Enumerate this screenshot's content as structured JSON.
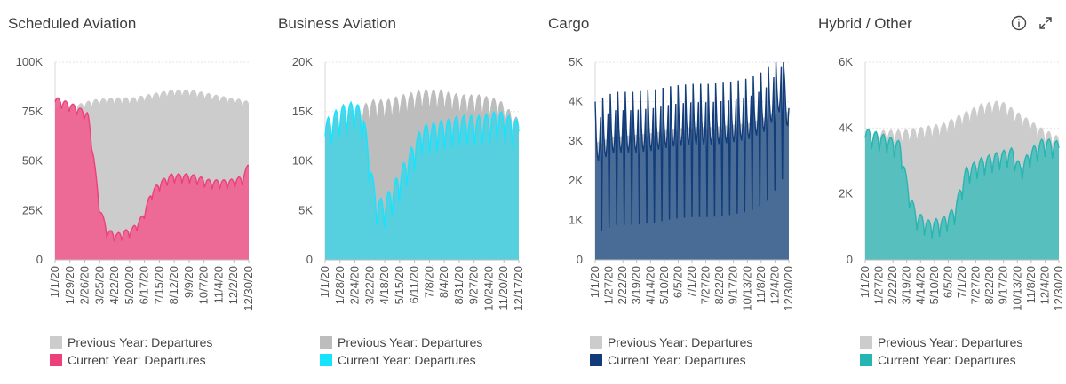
{
  "toolbar": {
    "info_icon": "info-icon",
    "expand_icon": "expand-icon",
    "menu_icon": "more-vert-icon"
  },
  "chart_data": [
    {
      "type": "area",
      "title": "Scheduled Aviation",
      "ylim": [
        0,
        100000
      ],
      "yticks": [
        "0",
        "25K",
        "50K",
        "75K",
        "100K"
      ],
      "xticks": [
        "1/1/20",
        "1/29/20",
        "2/26/20",
        "3/25/20",
        "4/22/20",
        "5/20/20",
        "6/17/20",
        "7/15/20",
        "8/12/20",
        "9/9/20",
        "10/7/20",
        "11/4/20",
        "12/2/20",
        "12/30/20"
      ],
      "colors": {
        "previous": "#cccccc",
        "current": "#f06292",
        "current_line": "#ec407a"
      },
      "series": [
        {
          "name": "Previous Year: Departures",
          "points": [
            [
              0,
              75000
            ],
            [
              0.13,
              77000
            ],
            [
              0.2,
              79000
            ],
            [
              0.3,
              80000
            ],
            [
              0.4,
              80000
            ],
            [
              0.5,
              82000
            ],
            [
              0.6,
              84000
            ],
            [
              0.7,
              84000
            ],
            [
              0.8,
              82000
            ],
            [
              0.9,
              80000
            ],
            [
              0.97,
              79000
            ],
            [
              1,
              78000
            ]
          ]
        },
        {
          "name": "Current Year: Departures",
          "points": [
            [
              0,
              80000
            ],
            [
              0.1,
              76000
            ],
            [
              0.17,
              72000
            ],
            [
              0.2,
              50000
            ],
            [
              0.23,
              25000
            ],
            [
              0.27,
              13000
            ],
            [
              0.32,
              11000
            ],
            [
              0.4,
              14000
            ],
            [
              0.45,
              20000
            ],
            [
              0.5,
              33000
            ],
            [
              0.55,
              38000
            ],
            [
              0.6,
              41000
            ],
            [
              0.7,
              41000
            ],
            [
              0.8,
              38000
            ],
            [
              0.9,
              38000
            ],
            [
              0.97,
              40000
            ],
            [
              1,
              47000
            ]
          ]
        }
      ],
      "legend": [
        "Previous Year: Departures",
        "Current Year: Departures"
      ]
    },
    {
      "type": "area",
      "title": "Business Aviation",
      "ylim": [
        0,
        20000
      ],
      "yticks": [
        "0",
        "5K",
        "10K",
        "15K",
        "20K"
      ],
      "xticks": [
        "1/1/20",
        "1/28/20",
        "2/24/20",
        "3/22/20",
        "4/18/20",
        "5/15/20",
        "6/11/20",
        "7/8/20",
        "8/4/20",
        "8/31/20",
        "9/27/20",
        "10/24/20",
        "11/20/20",
        "12/17/20"
      ],
      "colors": {
        "previous": "#bdbdbd",
        "current": "#4dd0e1",
        "current_line": "#18e3ff"
      },
      "series": [
        {
          "name": "Previous Year: Departures",
          "points": [
            [
              0,
              12500
            ],
            [
              0.08,
              13500
            ],
            [
              0.16,
              14000
            ],
            [
              0.24,
              15000
            ],
            [
              0.32,
              15000
            ],
            [
              0.4,
              15500
            ],
            [
              0.5,
              16000
            ],
            [
              0.6,
              16000
            ],
            [
              0.7,
              15500
            ],
            [
              0.8,
              15500
            ],
            [
              0.9,
              15000
            ],
            [
              1,
              13000
            ]
          ]
        },
        {
          "name": "Current Year: Departures",
          "points": [
            [
              0,
              12500
            ],
            [
              0.08,
              14000
            ],
            [
              0.16,
              14500
            ],
            [
              0.2,
              13000
            ],
            [
              0.23,
              9000
            ],
            [
              0.26,
              5000
            ],
            [
              0.3,
              4500
            ],
            [
              0.35,
              6000
            ],
            [
              0.4,
              8000
            ],
            [
              0.45,
              10000
            ],
            [
              0.5,
              12000
            ],
            [
              0.6,
              12500
            ],
            [
              0.7,
              13000
            ],
            [
              0.8,
              13000
            ],
            [
              0.9,
              13500
            ],
            [
              1,
              12500
            ]
          ]
        }
      ],
      "legend": [
        "Previous Year: Departures",
        "Current Year: Departures"
      ]
    },
    {
      "type": "area",
      "title": "Cargo",
      "ylim": [
        0,
        5000
      ],
      "yticks": [
        "0",
        "1K",
        "2K",
        "3K",
        "4K",
        "5K"
      ],
      "xticks": [
        "1/1/20",
        "1/27/20",
        "2/22/20",
        "3/19/20",
        "4/14/20",
        "5/10/20",
        "6/5/20",
        "7/1/20",
        "7/27/20",
        "8/22/20",
        "9/17/20",
        "10/13/20",
        "11/8/20",
        "12/4/20",
        "12/30/20"
      ],
      "colors": {
        "previous": "#cccccc",
        "current": "#3d6491",
        "current_line": "#123d7a"
      },
      "series": [
        {
          "name": "Previous Year: Departures",
          "points": [
            [
              0,
              2900
            ],
            [
              0.1,
              3050
            ],
            [
              0.2,
              3100
            ],
            [
              0.3,
              3150
            ],
            [
              0.4,
              3250
            ],
            [
              0.5,
              3300
            ],
            [
              0.6,
              3300
            ],
            [
              0.7,
              3350
            ],
            [
              0.8,
              3400
            ],
            [
              0.9,
              3600
            ],
            [
              1,
              3700
            ]
          ]
        },
        {
          "name": "Current Year: Departures",
          "points": [
            [
              0,
              2900
            ],
            [
              0.1,
              3150
            ],
            [
              0.2,
              3150
            ],
            [
              0.3,
              3200
            ],
            [
              0.4,
              3300
            ],
            [
              0.5,
              3350
            ],
            [
              0.6,
              3350
            ],
            [
              0.7,
              3400
            ],
            [
              0.8,
              3500
            ],
            [
              0.88,
              3700
            ],
            [
              0.94,
              4100
            ],
            [
              0.98,
              4400
            ],
            [
              1,
              3200
            ]
          ]
        }
      ],
      "legend": [
        "Previous Year: Departures",
        "Current Year: Departures"
      ]
    },
    {
      "type": "area",
      "title": "Hybrid / Other",
      "ylim": [
        0,
        6000
      ],
      "yticks": [
        "0",
        "2K",
        "4K",
        "6K"
      ],
      "xticks": [
        "1/1/20",
        "1/27/20",
        "2/22/20",
        "3/19/20",
        "4/14/20",
        "5/10/20",
        "6/5/20",
        "7/1/20",
        "7/27/20",
        "8/22/20",
        "9/17/20",
        "10/13/20",
        "11/8/20",
        "12/4/20",
        "12/30/20"
      ],
      "colors": {
        "previous": "#cccccc",
        "current": "#4dbfbd",
        "current_line": "#26b5b1"
      },
      "series": [
        {
          "name": "Previous Year: Departures",
          "points": [
            [
              0,
              3600
            ],
            [
              0.1,
              3700
            ],
            [
              0.2,
              3700
            ],
            [
              0.3,
              3800
            ],
            [
              0.4,
              3900
            ],
            [
              0.5,
              4200
            ],
            [
              0.6,
              4500
            ],
            [
              0.7,
              4600
            ],
            [
              0.8,
              4200
            ],
            [
              0.9,
              3800
            ],
            [
              1,
              3500
            ]
          ]
        },
        {
          "name": "Current Year: Departures",
          "points": [
            [
              0,
              3700
            ],
            [
              0.1,
              3500
            ],
            [
              0.18,
              3300
            ],
            [
              0.22,
              2000
            ],
            [
              0.26,
              1200
            ],
            [
              0.33,
              900
            ],
            [
              0.4,
              1000
            ],
            [
              0.46,
              1300
            ],
            [
              0.52,
              2500
            ],
            [
              0.6,
              2800
            ],
            [
              0.7,
              3000
            ],
            [
              0.76,
              3100
            ],
            [
              0.8,
              2600
            ],
            [
              0.86,
              3100
            ],
            [
              0.92,
              3400
            ],
            [
              1,
              3300
            ]
          ]
        }
      ],
      "legend": [
        "Previous Year: Departures",
        "Current Year: Departures"
      ]
    }
  ]
}
